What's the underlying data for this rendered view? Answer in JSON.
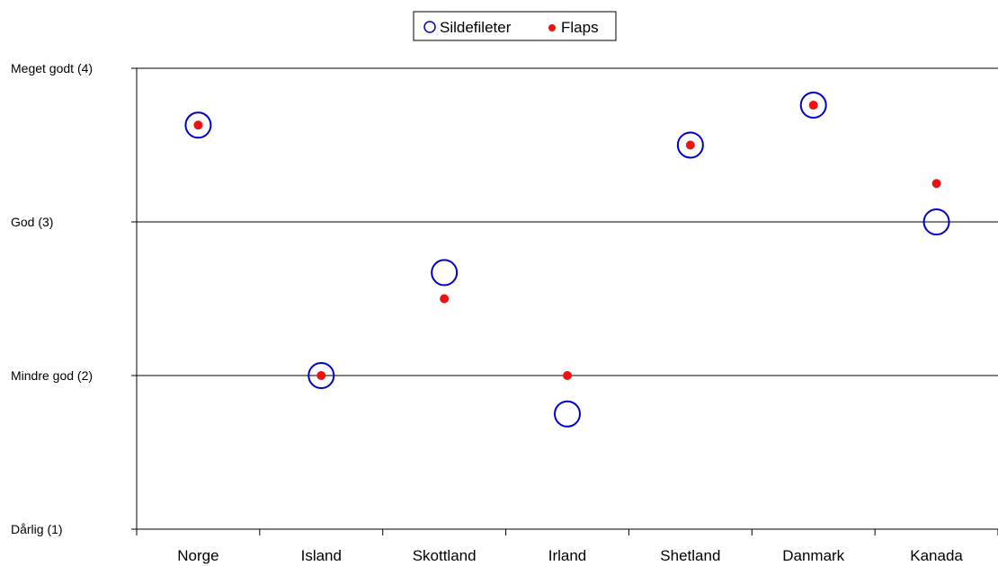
{
  "chart_data": {
    "type": "scatter",
    "categories": [
      "Norge",
      "Island",
      "Skottland",
      "Irland",
      "Shetland",
      "Danmark",
      "Kanada"
    ],
    "ylim": [
      1,
      4
    ],
    "yticks": [
      {
        "value": 1,
        "label": "Dårlig (1)"
      },
      {
        "value": 2,
        "label": "Mindre god (2)"
      },
      {
        "value": 3,
        "label": "God (3)"
      },
      {
        "value": 4,
        "label": "Meget godt (4)"
      }
    ],
    "series": [
      {
        "name": "Sildefileter",
        "marker": "open-circle",
        "color": "#0000cc",
        "values": [
          3.63,
          2.0,
          2.67,
          1.75,
          3.5,
          3.76,
          3.0
        ]
      },
      {
        "name": "Flaps",
        "marker": "filled-dot",
        "color": "#ee1111",
        "values": [
          3.63,
          2.0,
          2.5,
          2.0,
          3.5,
          3.76,
          3.25
        ]
      }
    ],
    "legend_position": "top-center",
    "grid": "horizontal major gridlines"
  }
}
